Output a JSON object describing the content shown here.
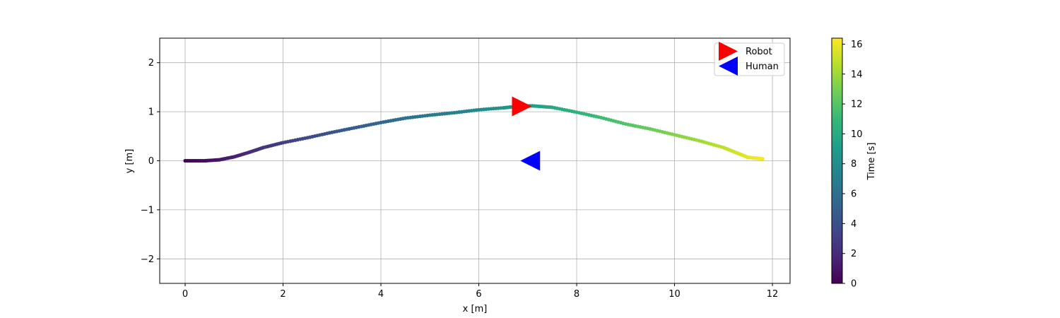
{
  "chart_data": {
    "type": "scatter",
    "title": "",
    "xlabel": "x [m]",
    "ylabel": "y [m]",
    "xlim": [
      -0.52,
      12.36
    ],
    "ylim": [
      -2.5,
      2.5
    ],
    "xticks": [
      0,
      2,
      4,
      6,
      8,
      10,
      12
    ],
    "yticks": [
      -2,
      -1,
      0,
      1,
      2
    ],
    "xtick_labels": [
      "0",
      "2",
      "4",
      "6",
      "8",
      "10",
      "12"
    ],
    "ytick_labels": [
      "−2",
      "−1",
      "0",
      "1",
      "2"
    ],
    "grid": true,
    "trajectory": {
      "color_by": "time",
      "colormap": "viridis",
      "x": [
        0.0,
        0.4,
        0.7,
        1.0,
        1.3,
        1.6,
        2.0,
        2.5,
        3.0,
        3.5,
        4.0,
        4.5,
        5.0,
        5.5,
        6.0,
        6.5,
        6.8,
        7.1,
        7.5,
        8.0,
        8.5,
        9.0,
        9.5,
        10.0,
        10.5,
        11.0,
        11.3,
        11.5,
        11.8
      ],
      "y": [
        0.0,
        0.0,
        0.02,
        0.08,
        0.17,
        0.27,
        0.37,
        0.47,
        0.58,
        0.68,
        0.78,
        0.87,
        0.93,
        0.98,
        1.04,
        1.08,
        1.11,
        1.12,
        1.09,
        0.99,
        0.88,
        0.75,
        0.65,
        0.53,
        0.41,
        0.27,
        0.15,
        0.07,
        0.04
      ],
      "t": [
        0.0,
        0.5,
        1.0,
        1.5,
        2.0,
        2.5,
        3.0,
        3.6,
        4.2,
        4.8,
        5.4,
        6.0,
        6.6,
        7.2,
        7.8,
        8.4,
        8.8,
        9.2,
        9.8,
        10.5,
        11.2,
        11.9,
        12.6,
        13.3,
        14.0,
        14.8,
        15.4,
        15.8,
        16.3
      ]
    },
    "markers": [
      {
        "name": "Robot",
        "x": 6.88,
        "y": 1.11,
        "direction": "right",
        "color": "#ff0000"
      },
      {
        "name": "Human",
        "x": 7.05,
        "y": 0.0,
        "direction": "left",
        "color": "#0000ff"
      }
    ],
    "legend": {
      "placement": "upper right",
      "entries": [
        "Robot",
        "Human"
      ]
    },
    "colorbar": {
      "label": "Time [s]",
      "colormap": "viridis",
      "range": [
        0,
        16.4
      ],
      "ticks": [
        0,
        2,
        4,
        6,
        8,
        10,
        12,
        14,
        16
      ],
      "tick_labels": [
        "0",
        "2",
        "4",
        "6",
        "8",
        "10",
        "12",
        "14",
        "16"
      ]
    }
  }
}
